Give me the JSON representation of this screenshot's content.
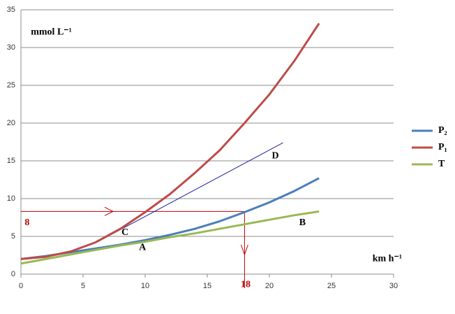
{
  "chart_data": {
    "type": "line",
    "x": [
      0,
      2,
      4,
      6,
      8,
      10,
      12,
      14,
      16,
      18,
      20,
      22,
      24
    ],
    "series": [
      {
        "name": "P₂",
        "color": "#4a7ebb",
        "values": [
          2,
          2.4,
          2.9,
          3.4,
          3.9,
          4.5,
          5.2,
          6,
          7,
          8.2,
          9.5,
          11,
          12.7
        ]
      },
      {
        "name": "P₁",
        "color": "#be4b48",
        "values": [
          2,
          2.3,
          3,
          4.2,
          6,
          8.2,
          10.6,
          13.4,
          16.4,
          20,
          23.8,
          28.2,
          33.2
        ]
      },
      {
        "name": "T",
        "color": "#98b954",
        "values": [
          1.4,
          2,
          2.6,
          3.2,
          3.8,
          4.3,
          4.9,
          5.4,
          6,
          6.6,
          7.2,
          7.8,
          8.3
        ]
      }
    ],
    "tangent": {
      "x": [
        6.2,
        21.1
      ],
      "y": [
        4.3,
        17.4
      ],
      "color": "#1f1fa0"
    },
    "guide": {
      "x": 18,
      "y": 8.3,
      "color": "#c00000"
    },
    "annotations": [
      {
        "text": "mmol L⁻¹",
        "x": 0.8,
        "y": 32,
        "color": "#000000"
      },
      {
        "text": "km h⁻¹",
        "x": 28.3,
        "y": 2,
        "color": "#000000"
      },
      {
        "text": "A",
        "x": 9.5,
        "y": 3.5,
        "color": "#000000"
      },
      {
        "text": "B",
        "x": 22.4,
        "y": 6.8,
        "color": "#000000"
      },
      {
        "text": "C",
        "x": 8.1,
        "y": 5.5,
        "color": "#000000"
      },
      {
        "text": "D",
        "x": 20.2,
        "y": 15.6,
        "color": "#000000"
      },
      {
        "text": "8",
        "x": 0.3,
        "y": 6.8,
        "color": "#c00000"
      },
      {
        "text": "18",
        "x": 17.7,
        "y": -1.4,
        "color": "#c00000"
      }
    ],
    "xlim": [
      0,
      30
    ],
    "xticks": [
      0,
      5,
      10,
      15,
      20,
      25,
      30
    ],
    "ylim": [
      0,
      35
    ],
    "yticks": [
      0,
      5,
      10,
      15,
      20,
      25,
      30,
      35
    ],
    "grid": true,
    "legend": "right"
  }
}
